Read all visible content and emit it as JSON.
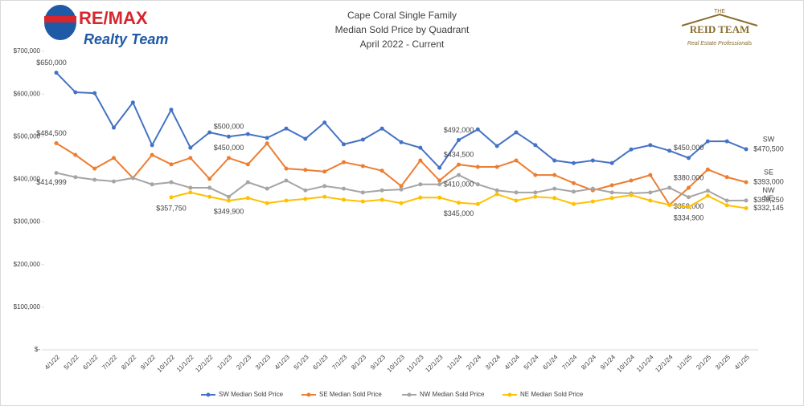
{
  "chart_data": {
    "type": "line",
    "title": "Cape Coral Single Family",
    "subtitle": "Median Sold Price by Quadrant",
    "period": "April 2022 - Current",
    "logos": {
      "left_top": "RE/MAX",
      "left_bottom": "Realty Team",
      "right_top": "THE",
      "right_main": "REID TEAM",
      "right_bottom": "Real Estate Professionals"
    },
    "categories": [
      "4/1/22",
      "5/1/22",
      "6/1/22",
      "7/1/22",
      "8/1/22",
      "9/1/22",
      "10/1/22",
      "11/1/22",
      "12/1/22",
      "1/1/23",
      "2/1/23",
      "3/1/23",
      "4/1/23",
      "5/1/23",
      "6/1/23",
      "7/1/23",
      "8/1/23",
      "9/1/23",
      "10/1/23",
      "11/1/23",
      "12/1/23",
      "1/1/24",
      "2/1/24",
      "3/1/24",
      "4/1/24",
      "5/1/24",
      "6/1/24",
      "7/1/24",
      "8/1/24",
      "9/1/24",
      "10/1/24",
      "11/1/24",
      "12/1/24",
      "1/1/25",
      "2/1/25",
      "3/1/25",
      "4/1/25"
    ],
    "series": [
      {
        "name": "SW Median Sold Price",
        "end_label": "SW",
        "color": "#4472c4",
        "values": [
          650000,
          604000,
          602000,
          521000,
          580000,
          480000,
          563000,
          474000,
          510000,
          500000,
          506000,
          497000,
          519000,
          495000,
          533000,
          482000,
          493000,
          519000,
          487000,
          474000,
          427000,
          492000,
          517000,
          478000,
          510000,
          480000,
          444000,
          438000,
          444000,
          438000,
          470000,
          480000,
          467000,
          450000,
          489000,
          489000,
          470500
        ],
        "value_labels": [
          "$650,000",
          null,
          null,
          null,
          null,
          null,
          null,
          null,
          null,
          "$500,000",
          null,
          null,
          null,
          null,
          null,
          null,
          null,
          null,
          null,
          null,
          null,
          "$492,000",
          null,
          null,
          null,
          null,
          null,
          null,
          null,
          null,
          null,
          null,
          null,
          "$450,000",
          null,
          null,
          "$470,500"
        ]
      },
      {
        "name": "SE Median Sold Price",
        "end_label": "SE",
        "color": "#ed7d31",
        "values": [
          484500,
          457000,
          425000,
          450000,
          403000,
          457000,
          435000,
          450000,
          401000,
          450000,
          435000,
          484000,
          425000,
          422000,
          418000,
          440000,
          431000,
          420000,
          384000,
          444000,
          397000,
          434500,
          429000,
          429000,
          444000,
          410000,
          410000,
          391000,
          374000,
          386000,
          397000,
          410000,
          340000,
          380000,
          423000,
          405000,
          393000
        ],
        "value_labels": [
          "$484,500",
          null,
          null,
          null,
          null,
          null,
          null,
          null,
          null,
          "$450,000",
          null,
          null,
          null,
          null,
          null,
          null,
          null,
          null,
          null,
          null,
          null,
          "$434,500",
          null,
          null,
          null,
          null,
          null,
          null,
          null,
          null,
          null,
          null,
          null,
          "$380,000",
          null,
          null,
          "$393,000"
        ]
      },
      {
        "name": "NW Median Sold Price",
        "end_label": "NW",
        "color": "#a5a5a5",
        "values": [
          414999,
          405000,
          399000,
          395000,
          403000,
          388000,
          393000,
          380000,
          380000,
          359000,
          393000,
          378000,
          397000,
          374000,
          384000,
          378000,
          369000,
          374000,
          376000,
          388000,
          388000,
          410000,
          388000,
          374000,
          369000,
          369000,
          378000,
          371000,
          378000,
          369000,
          367000,
          369000,
          380000,
          358000,
          373000,
          350000,
          350250
        ],
        "value_labels": [
          "$414,999",
          null,
          null,
          null,
          null,
          null,
          null,
          null,
          null,
          null,
          null,
          null,
          null,
          null,
          null,
          null,
          null,
          null,
          null,
          null,
          null,
          "$410,000",
          null,
          null,
          null,
          null,
          null,
          null,
          null,
          null,
          null,
          null,
          null,
          "$358,000",
          null,
          null,
          "$350,250"
        ]
      },
      {
        "name": "NE Median Sold Price",
        "end_label": "NE",
        "color": "#ffc000",
        "values": [
          null,
          null,
          null,
          null,
          null,
          null,
          357750,
          369000,
          359000,
          349900,
          356000,
          344000,
          350000,
          354000,
          359000,
          352000,
          348000,
          352000,
          344000,
          357000,
          357000,
          345000,
          342000,
          365000,
          350000,
          359000,
          356000,
          342000,
          348000,
          356000,
          363000,
          350000,
          340000,
          334900,
          361000,
          339000,
          332145
        ],
        "value_labels": [
          null,
          null,
          null,
          null,
          null,
          null,
          "$357,750",
          null,
          null,
          "$349,900",
          null,
          null,
          null,
          null,
          null,
          null,
          null,
          null,
          null,
          null,
          null,
          "$345,000",
          null,
          null,
          null,
          null,
          null,
          null,
          null,
          null,
          null,
          null,
          null,
          "$334,900",
          null,
          null,
          "$332,145"
        ]
      }
    ],
    "ylim": [
      0,
      700000
    ],
    "yticks": [
      {
        "value": 0,
        "label": "$-"
      },
      {
        "value": 100000,
        "label": "$100,000"
      },
      {
        "value": 200000,
        "label": "$200,000"
      },
      {
        "value": 300000,
        "label": "$300,000"
      },
      {
        "value": 400000,
        "label": "$400,000"
      },
      {
        "value": 500000,
        "label": "$500,000"
      },
      {
        "value": 600000,
        "label": "$600,000"
      },
      {
        "value": 700000,
        "label": "$700,000"
      }
    ],
    "grid": false,
    "legend": "bottom"
  }
}
